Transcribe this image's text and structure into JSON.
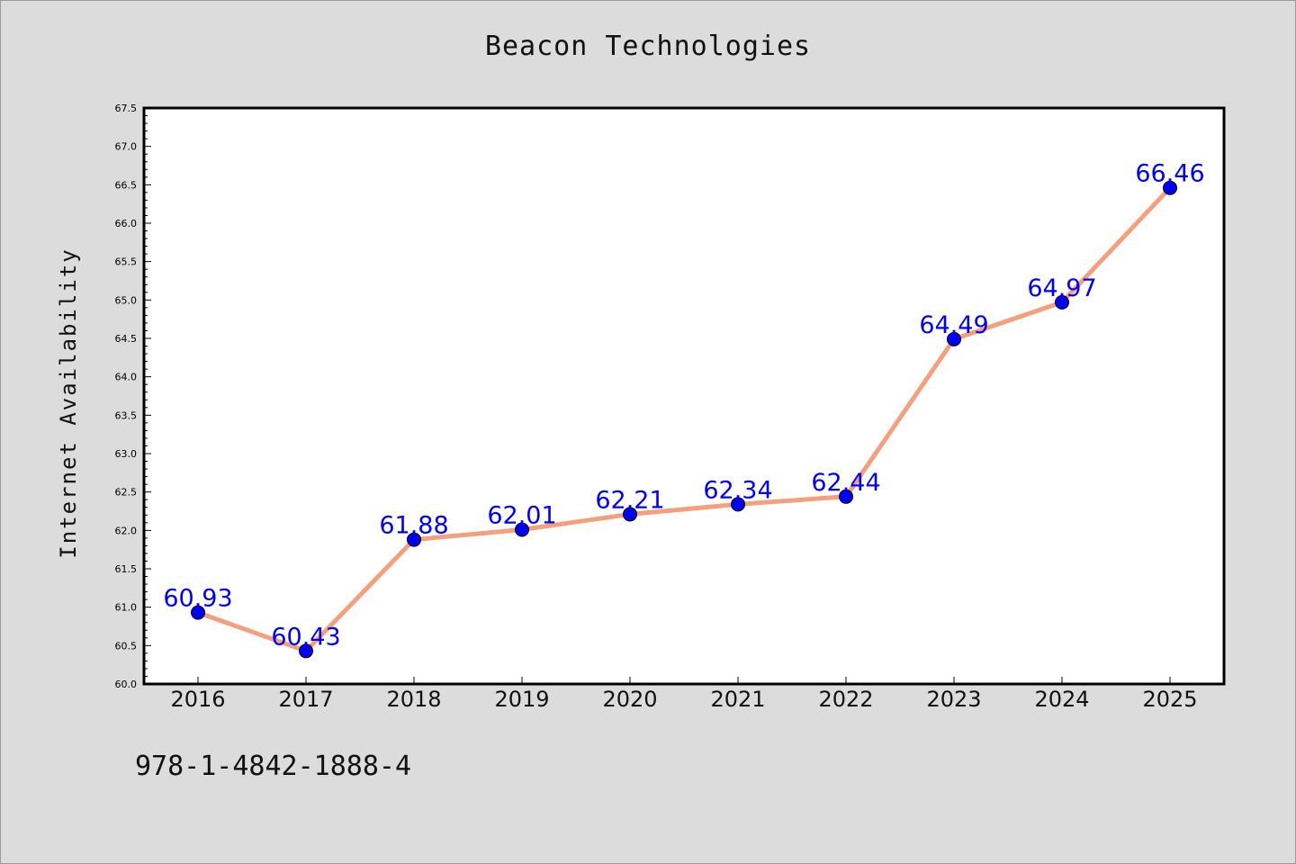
{
  "chart_data": {
    "type": "line",
    "title": "Beacon Technologies",
    "xlabel": "",
    "ylabel": "Internet Availability",
    "categories": [
      "2016",
      "2017",
      "2018",
      "2019",
      "2020",
      "2021",
      "2022",
      "2023",
      "2024",
      "2025"
    ],
    "values": [
      60.93,
      60.43,
      61.88,
      62.01,
      62.21,
      62.34,
      62.44,
      64.49,
      64.97,
      66.46
    ],
    "data_labels": [
      "60.93",
      "60.43",
      "61.88",
      "62.01",
      "62.21",
      "62.34",
      "62.44",
      "64.49",
      "64.97",
      "66.46"
    ],
    "ylim": [
      60.0,
      67.5
    ],
    "yticks": [
      "60.0",
      "60.5",
      "61.0",
      "61.5",
      "62.0",
      "62.5",
      "63.0",
      "63.5",
      "64.0",
      "64.5",
      "65.0",
      "65.5",
      "66.0",
      "66.5",
      "67.0",
      "67.5"
    ],
    "grid": false,
    "legend": "none",
    "line_color": "#f4a07f",
    "marker_color": "#0000ee",
    "label_color": "#0000ee",
    "plot_background": "#ffffff",
    "figure_background": "#dcdcdc"
  },
  "footer_text": "978-1-4842-1888-4"
}
